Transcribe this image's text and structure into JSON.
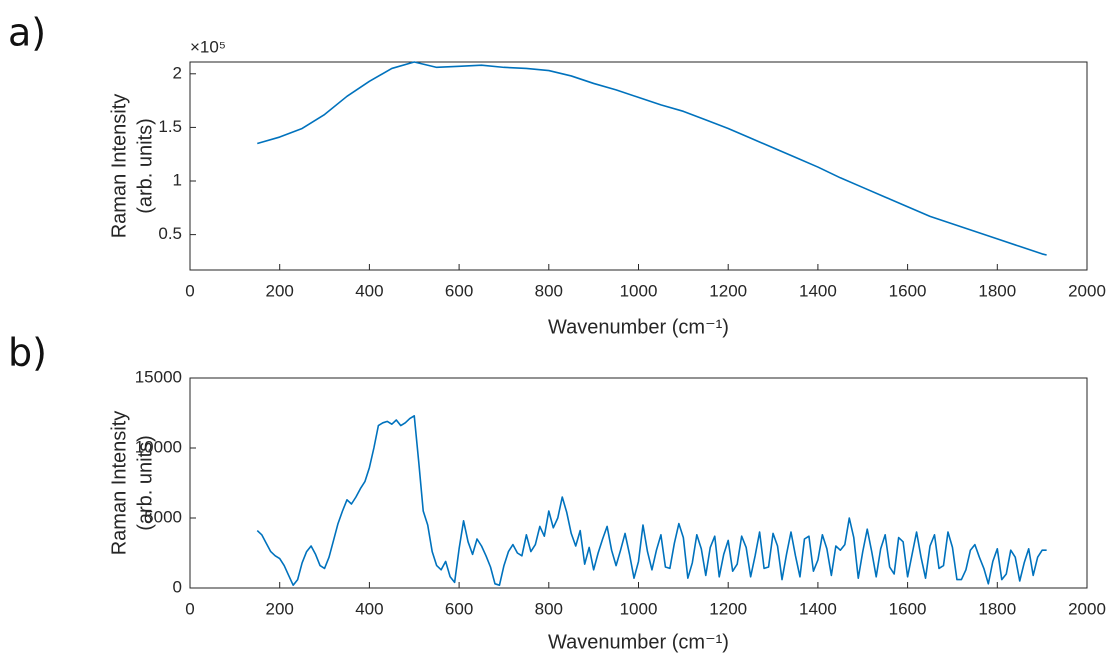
{
  "chart_data": [
    {
      "type": "line",
      "panel_label": "a)",
      "ylabel": [
        "Raman Intensity",
        "(arb. units)"
      ],
      "xlabel": "Wavenumber (cm⁻¹)",
      "y_exponent": "×10⁵",
      "xlim": [
        0,
        2000
      ],
      "xticks": [
        0,
        200,
        400,
        600,
        800,
        1000,
        1200,
        1400,
        1600,
        1800,
        2000
      ],
      "ylim": [
        0.17,
        2.11
      ],
      "yticks": [
        0.5,
        1,
        1.5,
        2
      ],
      "grid": false,
      "x": [
        150,
        200,
        250,
        300,
        350,
        400,
        450,
        500,
        550,
        600,
        650,
        700,
        750,
        800,
        850,
        900,
        950,
        1000,
        1050,
        1100,
        1150,
        1200,
        1250,
        1300,
        1350,
        1400,
        1450,
        1500,
        1550,
        1600,
        1650,
        1700,
        1750,
        1800,
        1850,
        1900,
        1910
      ],
      "series": [
        {
          "color": "#0072bd",
          "values": [
            1.35,
            1.41,
            1.49,
            1.62,
            1.79,
            1.93,
            2.05,
            2.11,
            2.06,
            2.07,
            2.08,
            2.06,
            2.05,
            2.03,
            1.98,
            1.91,
            1.85,
            1.78,
            1.71,
            1.65,
            1.57,
            1.49,
            1.4,
            1.31,
            1.22,
            1.13,
            1.03,
            0.94,
            0.85,
            0.76,
            0.67,
            0.6,
            0.53,
            0.46,
            0.39,
            0.32,
            0.31
          ]
        }
      ]
    },
    {
      "type": "line",
      "panel_label": "b)",
      "ylabel": [
        "Raman Intensity",
        "(arb. units)"
      ],
      "xlabel": "Wavenumber (cm⁻¹)",
      "xlim": [
        0,
        2000
      ],
      "xticks": [
        0,
        200,
        400,
        600,
        800,
        1000,
        1200,
        1400,
        1600,
        1800,
        2000
      ],
      "ylim": [
        0,
        15000
      ],
      "yticks": [
        0,
        5000,
        10000,
        15000
      ],
      "grid": false,
      "x": [
        150,
        160,
        170,
        180,
        190,
        200,
        210,
        220,
        230,
        240,
        250,
        260,
        270,
        280,
        290,
        300,
        310,
        320,
        330,
        340,
        350,
        360,
        370,
        380,
        390,
        400,
        410,
        420,
        430,
        440,
        450,
        460,
        470,
        480,
        490,
        500,
        510,
        520,
        530,
        540,
        550,
        560,
        570,
        580,
        590,
        600,
        610,
        620,
        630,
        640,
        650,
        660,
        670,
        680,
        690,
        700,
        710,
        720,
        730,
        740,
        750,
        760,
        770,
        780,
        790,
        800,
        810,
        820,
        830,
        840,
        850,
        860,
        870,
        880,
        890,
        900,
        910,
        920,
        930,
        940,
        950,
        960,
        970,
        980,
        990,
        1000,
        1010,
        1020,
        1030,
        1040,
        1050,
        1060,
        1070,
        1080,
        1090,
        1100,
        1110,
        1120,
        1130,
        1140,
        1150,
        1160,
        1170,
        1180,
        1190,
        1200,
        1210,
        1220,
        1230,
        1240,
        1250,
        1260,
        1270,
        1280,
        1290,
        1300,
        1310,
        1320,
        1330,
        1340,
        1350,
        1360,
        1370,
        1380,
        1390,
        1400,
        1410,
        1420,
        1430,
        1440,
        1450,
        1460,
        1470,
        1480,
        1490,
        1500,
        1510,
        1520,
        1530,
        1540,
        1550,
        1560,
        1570,
        1580,
        1590,
        1600,
        1610,
        1620,
        1630,
        1640,
        1650,
        1660,
        1670,
        1680,
        1690,
        1700,
        1710,
        1720,
        1730,
        1740,
        1750,
        1760,
        1770,
        1780,
        1790,
        1800,
        1810,
        1820,
        1830,
        1840,
        1850,
        1860,
        1870,
        1880,
        1890,
        1900,
        1910
      ],
      "series": [
        {
          "color": "#0072bd",
          "values": [
            4100,
            3800,
            3200,
            2600,
            2300,
            2100,
            1600,
            900,
            200,
            600,
            1800,
            2600,
            3000,
            2400,
            1600,
            1400,
            2200,
            3400,
            4600,
            5500,
            6300,
            6000,
            6500,
            7100,
            7600,
            8600,
            10000,
            11600,
            11800,
            11900,
            11700,
            12000,
            11600,
            11800,
            12100,
            12300,
            9000,
            5500,
            4500,
            2600,
            1600,
            1300,
            1900,
            800,
            400,
            2800,
            4800,
            3300,
            2400,
            3500,
            3000,
            2300,
            1500,
            300,
            200,
            1600,
            2600,
            3100,
            2500,
            2300,
            3800,
            2600,
            3100,
            4400,
            3700,
            5500,
            4300,
            5000,
            6500,
            5400,
            3900,
            3000,
            4100,
            1700,
            2900,
            1300,
            2500,
            3500,
            4400,
            2700,
            1600,
            2700,
            3900,
            2400,
            700,
            1900,
            4500,
            2600,
            1300,
            2700,
            3800,
            1500,
            1400,
            3200,
            4600,
            3600,
            700,
            1800,
            3800,
            2800,
            900,
            2900,
            3700,
            800,
            2400,
            3400,
            1200,
            1700,
            3700,
            2900,
            800,
            2300,
            4000,
            1400,
            1500,
            3900,
            3000,
            600,
            2400,
            4000,
            2300,
            800,
            3500,
            3700,
            1200,
            2000,
            3800,
            2800,
            900,
            3000,
            2700,
            3100,
            5000,
            3600,
            700,
            2600,
            4200,
            2600,
            800,
            2800,
            3800,
            1500,
            1000,
            3600,
            3300,
            800,
            2400,
            4000,
            2200,
            700,
            3000,
            3800,
            1400,
            1600,
            4000,
            2900,
            600,
            600,
            1300,
            2700,
            3100,
            2200,
            1400,
            300,
            1900,
            2800,
            600,
            1000,
            2700,
            2200,
            500,
            1800,
            2800,
            900,
            2200,
            2700,
            2700
          ]
        }
      ]
    }
  ]
}
